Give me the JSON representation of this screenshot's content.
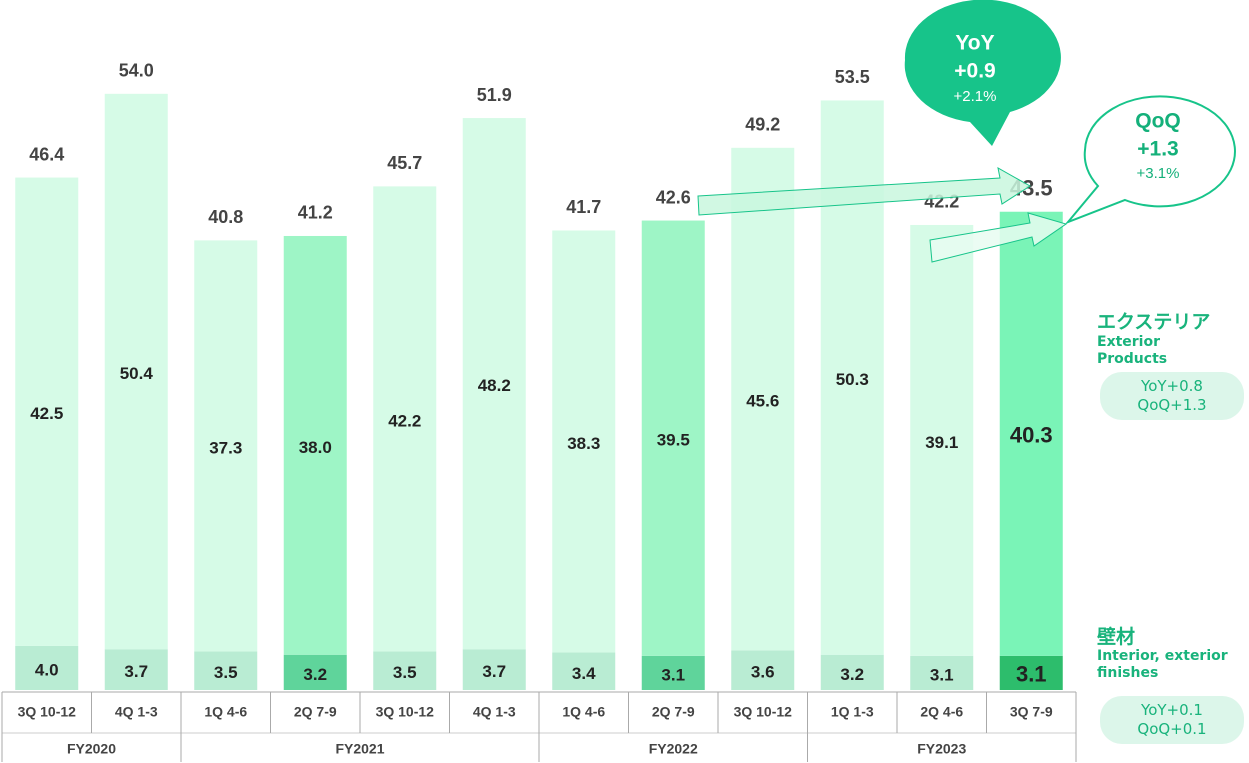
{
  "chart_data": {
    "type": "stacked-bar",
    "groups": [
      {
        "label": "FY2020",
        "categories": [
          "3Q 10-12",
          "4Q 1-3"
        ]
      },
      {
        "label": "FY2021",
        "categories": [
          "1Q 4-6",
          "2Q 7-9",
          "3Q 10-12",
          "4Q 1-3"
        ]
      },
      {
        "label": "FY2022",
        "categories": [
          "1Q 4-6",
          "2Q 7-9",
          "3Q 10-12"
        ]
      },
      {
        "label": "FY2023",
        "categories": [
          "1Q 1-3",
          "2Q 4-6",
          "3Q 7-9"
        ]
      }
    ],
    "series": [
      {
        "name": "壁材",
        "description": "Interior, exterior finishes",
        "yoy": "YoY+0.1",
        "qoq": "QoQ+0.1",
        "values": [
          4.0,
          3.7,
          3.5,
          3.2,
          3.5,
          3.7,
          3.4,
          3.1,
          3.6,
          3.2,
          3.1,
          3.1
        ],
        "value_labels": [
          "4.0",
          "3.7",
          "3.5",
          "3.2",
          "3.5",
          "3.7",
          "3.4",
          "3.1",
          "3.6",
          "3.2",
          "3.1",
          "3.1"
        ],
        "colors": [
          "#b9ecd3",
          "#b9ecd3",
          "#b9ecd3",
          "#5fd49b",
          "#b9ecd3",
          "#b9ecd3",
          "#b9ecd3",
          "#5fd49b",
          "#b9ecd3",
          "#b9ecd3",
          "#b9ecd3",
          "#2dbd6c"
        ]
      },
      {
        "name": "エクステリア",
        "description": "Exterior Products",
        "yoy": "YoY+0.8",
        "qoq": "QoQ+1.3",
        "values": [
          42.5,
          50.4,
          37.3,
          38.0,
          42.2,
          48.2,
          38.3,
          39.5,
          45.6,
          50.3,
          39.1,
          40.3
        ],
        "value_labels": [
          "42.5",
          "50.4",
          "37.3",
          "38.0",
          "42.2",
          "48.2",
          "38.3",
          "39.5",
          "45.6",
          "50.3",
          "39.1",
          "40.3"
        ],
        "colors": [
          "#d6fbe7",
          "#d6fbe7",
          "#d6fbe7",
          "#9ef5c6",
          "#d6fbe7",
          "#d6fbe7",
          "#d6fbe7",
          "#9ef5c6",
          "#d6fbe7",
          "#d6fbe7",
          "#d6fbe7",
          "#7af4b7"
        ]
      }
    ],
    "totals": [
      "46.4",
      "54.0",
      "40.8",
      "41.2",
      "45.7",
      "51.9",
      "41.7",
      "42.6",
      "49.2",
      "53.5",
      "42.2",
      "43.5"
    ],
    "annotations": {
      "yoy": [
        "YoY",
        "+0.9",
        "+2.1%"
      ],
      "qoq": [
        "QoQ",
        "+1.3",
        "+3.1%"
      ]
    }
  }
}
